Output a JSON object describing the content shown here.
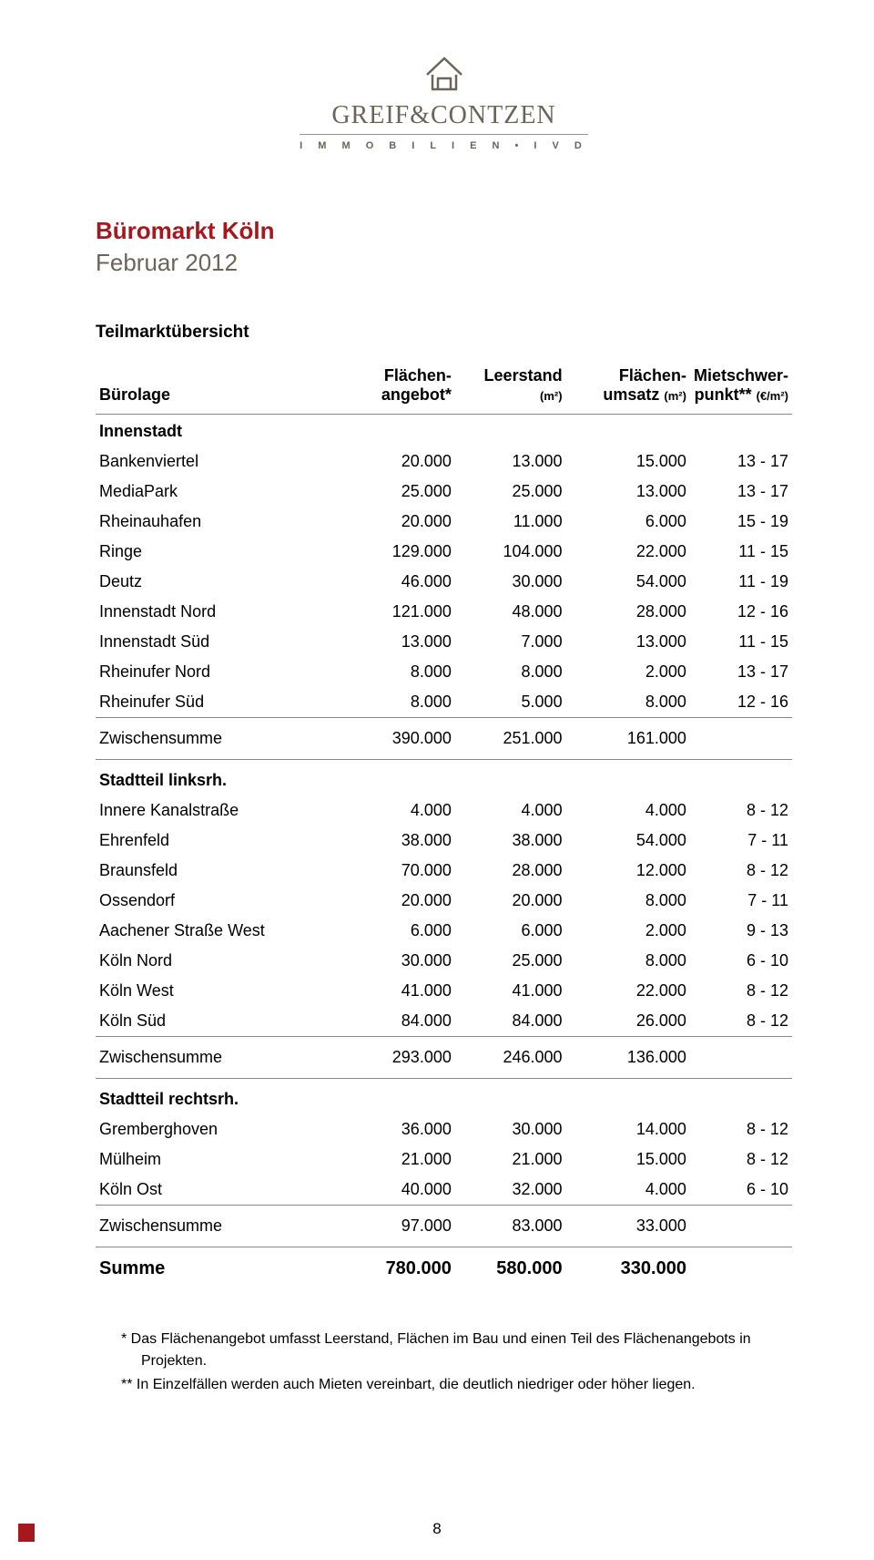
{
  "logo": {
    "company": "GREIF&CONTZEN",
    "subline": "I M M O B I L I E N  •  I V D",
    "color": "#6b6459"
  },
  "title": "Büromarkt Köln",
  "subtitle": "Februar 2012",
  "section_title": "Teilmarktübersicht",
  "columns": {
    "c0": "Bürolage",
    "c1": "Flächen-\nangebot*",
    "c2": "Leerstand",
    "c2_unit": "(m²)",
    "c3": "Flächen-\numsatz",
    "c3_unit": "(m²)",
    "c4": "Mietschwer-\npunkt**",
    "c4_unit": "(€/m²)"
  },
  "groups": [
    {
      "heading": "Innenstadt",
      "rows": [
        {
          "label": "Bankenviertel",
          "angebot": "20.000",
          "leerstand": "13.000",
          "umsatz": "15.000",
          "miete": "13 - 17"
        },
        {
          "label": "MediaPark",
          "angebot": "25.000",
          "leerstand": "25.000",
          "umsatz": "13.000",
          "miete": "13 - 17"
        },
        {
          "label": "Rheinauhafen",
          "angebot": "20.000",
          "leerstand": "11.000",
          "umsatz": "6.000",
          "miete": "15 - 19"
        },
        {
          "label": "Ringe",
          "angebot": "129.000",
          "leerstand": "104.000",
          "umsatz": "22.000",
          "miete": "11 - 15"
        },
        {
          "label": "Deutz",
          "angebot": "46.000",
          "leerstand": "30.000",
          "umsatz": "54.000",
          "miete": "11 - 19"
        },
        {
          "label": "Innenstadt Nord",
          "angebot": "121.000",
          "leerstand": "48.000",
          "umsatz": "28.000",
          "miete": "12 - 16"
        },
        {
          "label": "Innenstadt Süd",
          "angebot": "13.000",
          "leerstand": "7.000",
          "umsatz": "13.000",
          "miete": "11 - 15"
        },
        {
          "label": "Rheinufer Nord",
          "angebot": "8.000",
          "leerstand": "8.000",
          "umsatz": "2.000",
          "miete": "13 - 17"
        },
        {
          "label": "Rheinufer Süd",
          "angebot": "8.000",
          "leerstand": "5.000",
          "umsatz": "8.000",
          "miete": "12 - 16"
        }
      ],
      "subtotal": {
        "label": "Zwischensumme",
        "angebot": "390.000",
        "leerstand": "251.000",
        "umsatz": "161.000",
        "miete": ""
      }
    },
    {
      "heading": "Stadtteil linksrh.",
      "rows": [
        {
          "label": "Innere Kanalstraße",
          "angebot": "4.000",
          "leerstand": "4.000",
          "umsatz": "4.000",
          "miete": "8 - 12"
        },
        {
          "label": "Ehrenfeld",
          "angebot": "38.000",
          "leerstand": "38.000",
          "umsatz": "54.000",
          "miete": "7 - 11"
        },
        {
          "label": "Braunsfeld",
          "angebot": "70.000",
          "leerstand": "28.000",
          "umsatz": "12.000",
          "miete": "8 - 12"
        },
        {
          "label": "Ossendorf",
          "angebot": "20.000",
          "leerstand": "20.000",
          "umsatz": "8.000",
          "miete": "7 - 11"
        },
        {
          "label": "Aachener Straße West",
          "angebot": "6.000",
          "leerstand": "6.000",
          "umsatz": "2.000",
          "miete": "9 - 13"
        },
        {
          "label": "Köln Nord",
          "angebot": "30.000",
          "leerstand": "25.000",
          "umsatz": "8.000",
          "miete": "6 - 10"
        },
        {
          "label": "Köln West",
          "angebot": "41.000",
          "leerstand": "41.000",
          "umsatz": "22.000",
          "miete": "8 - 12"
        },
        {
          "label": "Köln Süd",
          "angebot": "84.000",
          "leerstand": "84.000",
          "umsatz": "26.000",
          "miete": "8 - 12"
        }
      ],
      "subtotal": {
        "label": "Zwischensumme",
        "angebot": "293.000",
        "leerstand": "246.000",
        "umsatz": "136.000",
        "miete": ""
      }
    },
    {
      "heading": "Stadtteil rechtsrh.",
      "rows": [
        {
          "label": "Gremberghoven",
          "angebot": "36.000",
          "leerstand": "30.000",
          "umsatz": "14.000",
          "miete": "8 - 12"
        },
        {
          "label": "Mülheim",
          "angebot": "21.000",
          "leerstand": "21.000",
          "umsatz": "15.000",
          "miete": "8 - 12"
        },
        {
          "label": "Köln Ost",
          "angebot": "40.000",
          "leerstand": "32.000",
          "umsatz": "4.000",
          "miete": "6 - 10"
        }
      ],
      "subtotal": {
        "label": "Zwischensumme",
        "angebot": "97.000",
        "leerstand": "83.000",
        "umsatz": "33.000",
        "miete": ""
      }
    }
  ],
  "total": {
    "label": "Summe",
    "angebot": "780.000",
    "leerstand": "580.000",
    "umsatz": "330.000",
    "miete": ""
  },
  "footnotes": {
    "f1": "*   Das Flächenangebot umfasst Leerstand, Flächen im Bau und einen Teil des Flächenangebots in Projekten.",
    "f2": "** In Einzelfällen werden auch Mieten vereinbart, die deutlich niedriger oder höher liegen."
  },
  "page_number": "8",
  "colors": {
    "title_red": "#a4181e",
    "logo_gray": "#6b6459",
    "rule": "#888888",
    "background": "#ffffff"
  },
  "typography": {
    "body_fontsize_pt": 13,
    "title_fontsize_pt": 19,
    "font_family": "Arial"
  }
}
